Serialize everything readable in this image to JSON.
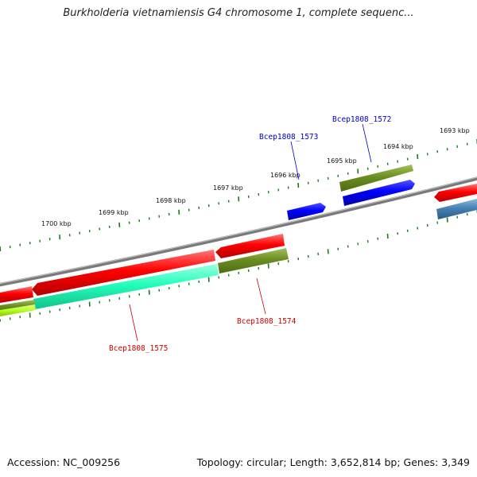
{
  "title": "Burkholderia vietnamiensis G4 chromosome 1, complete sequenc...",
  "footer": {
    "accession": "Accession: NC_009256",
    "topology": "Topology: circular; Length: 3,652,814 bp; Genes: 3,349"
  },
  "ticks": [
    "1693 kbp",
    "1694 kbp",
    "1695 kbp",
    "1696 kbp",
    "1697 kbp",
    "1698 kbp",
    "1699 kbp",
    "1700 kbp"
  ],
  "genes": [
    {
      "label": "Bcep1808_1572",
      "color": "#0000cc"
    },
    {
      "label": "Bcep1808_1573",
      "color": "#0000cc"
    },
    {
      "label": "Bcep1808_1574",
      "color": "#cc0000"
    },
    {
      "label": "Bcep1808_1575",
      "color": "#cc0000"
    }
  ],
  "colors": {
    "backbone": "#808080",
    "forward_cds": "#0000ee",
    "reverse_cds": "#ee0000",
    "olive": "#6b8e23",
    "aqua": "#22ffbb",
    "steel": "#4682b4",
    "tick": "#1a7a1a"
  }
}
